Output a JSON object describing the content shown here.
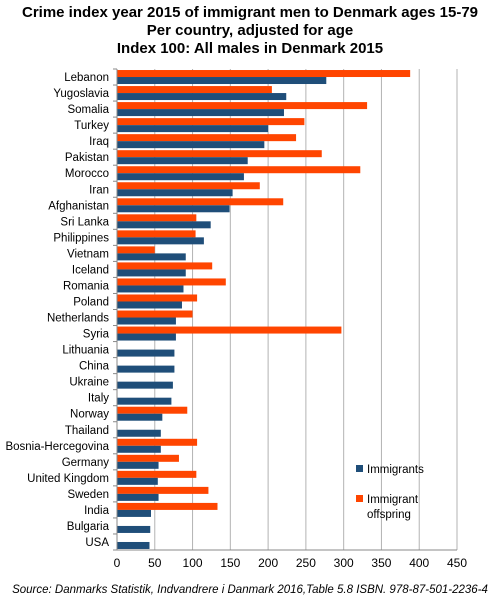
{
  "title_lines": [
    "Crime index year 2015 of immigrant men to Denmark ages 15-79",
    "Per country, adjusted for age",
    "Index 100: All males in Denmark 2015"
  ],
  "source": "Source: Danmarks Statistik, Indvandrere i Danmark 2016,Table 5.8 ISBN. 978-87-501-2236-4",
  "colors": {
    "immigrants": "#1f4e79",
    "offspring": "#ff4500",
    "grid": "#b3b3b3"
  },
  "chart_data": {
    "type": "bar",
    "orientation": "horizontal",
    "xlim": [
      0,
      450
    ],
    "xticks": [
      0,
      50,
      100,
      150,
      200,
      250,
      300,
      350,
      400,
      450
    ],
    "grid": true,
    "legend_position": "right",
    "categories": [
      "Lebanon",
      "Yugoslavia",
      "Somalia",
      "Turkey",
      "Iraq",
      "Pakistan",
      "Morocco",
      "Iran",
      "Afghanistan",
      "Sri Lanka",
      "Philippines",
      "Vietnam",
      "Iceland",
      "Romania",
      "Poland",
      "Netherlands",
      "Syria",
      "Lithuania",
      "China",
      "Ukraine",
      "Italy",
      "Norway",
      "Thailand",
      "Bosnia-Hercegovina",
      "Germany",
      "United Kingdom",
      "Sweden",
      "India",
      "Bulgaria",
      "USA"
    ],
    "series": [
      {
        "name": "Immigrants",
        "values": [
          277,
          224,
          221,
          200,
          195,
          173,
          168,
          153,
          149,
          124,
          115,
          91,
          91,
          88,
          86,
          78,
          78,
          76,
          76,
          74,
          72,
          60,
          58,
          58,
          55,
          54,
          55,
          45,
          44,
          43
        ]
      },
      {
        "name": "Immigrant offspring",
        "values": [
          388,
          205,
          331,
          248,
          237,
          271,
          322,
          189,
          220,
          105,
          104,
          50,
          126,
          144,
          106,
          100,
          297,
          null,
          null,
          null,
          null,
          93,
          null,
          106,
          82,
          105,
          121,
          133,
          null,
          null
        ]
      }
    ]
  }
}
